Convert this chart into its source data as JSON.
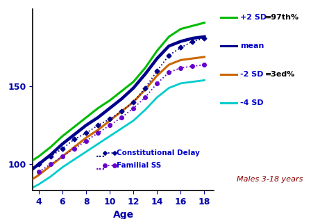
{
  "plot_bg": "#ffffff",
  "fig_bg": "#ffffff",
  "xlim": [
    3.5,
    18.8
  ],
  "ylim": [
    83,
    200
  ],
  "xticks": [
    4,
    6,
    8,
    10,
    12,
    14,
    16,
    18
  ],
  "yticks": [
    100,
    150
  ],
  "xlabel": "Age",
  "annotation": "Males 3-18 years",
  "annotation_color": "#8B0000",
  "sd_plus2": {
    "ages": [
      3,
      4,
      5,
      6,
      7,
      8,
      9,
      10,
      11,
      12,
      13,
      14,
      15,
      16,
      17,
      18
    ],
    "heights": [
      100,
      105,
      111,
      118,
      124,
      130,
      136,
      141,
      147,
      153,
      162,
      173,
      182,
      187,
      189,
      191
    ],
    "color": "#00bb00",
    "lw": 2.2
  },
  "sd_mean": {
    "ages": [
      3,
      4,
      5,
      6,
      7,
      8,
      9,
      10,
      11,
      12,
      13,
      14,
      15,
      16,
      17,
      18
    ],
    "heights": [
      94,
      100,
      106,
      113,
      119,
      125,
      130,
      136,
      142,
      149,
      158,
      168,
      176,
      179,
      181,
      182
    ],
    "color": "#00008B",
    "lw": 3.2
  },
  "sd_minus2": {
    "ages": [
      3,
      4,
      5,
      6,
      7,
      8,
      9,
      10,
      11,
      12,
      13,
      14,
      15,
      16,
      17,
      18
    ],
    "heights": [
      88,
      93,
      99,
      105,
      111,
      117,
      122,
      128,
      134,
      140,
      148,
      157,
      164,
      167,
      168,
      169
    ],
    "color": "#cc6600",
    "lw": 2.2
  },
  "sd_minus4": {
    "ages": [
      3,
      4,
      5,
      6,
      7,
      8,
      9,
      10,
      11,
      12,
      13,
      14,
      15,
      16,
      17,
      18
    ],
    "heights": [
      83,
      87,
      92,
      98,
      103,
      108,
      113,
      118,
      123,
      128,
      135,
      143,
      149,
      152,
      153,
      154
    ],
    "color": "#00cccc",
    "lw": 2.0
  },
  "const_delay": {
    "ages": [
      4,
      5,
      6,
      7,
      8,
      9,
      10,
      11,
      12,
      13,
      14,
      15,
      16,
      17,
      18
    ],
    "heights": [
      100,
      105,
      110,
      116,
      120,
      125,
      129,
      134,
      140,
      149,
      160,
      170,
      175,
      179,
      181
    ],
    "color": "#00008B",
    "lw": 1.3,
    "ms": 3.5
  },
  "familial_ss": {
    "ages": [
      4,
      5,
      6,
      7,
      8,
      9,
      10,
      11,
      12,
      13,
      14,
      15,
      16,
      17,
      18
    ],
    "heights": [
      95,
      100,
      105,
      110,
      115,
      120,
      125,
      130,
      136,
      143,
      152,
      159,
      162,
      163,
      164
    ],
    "color": "#6600cc",
    "lw": 1.3,
    "ms": 4.0
  },
  "right_labels": [
    {
      "text": "+2 SD",
      "color": "#00bb00",
      "y": 191,
      "fontsize": 8,
      "bold": true
    },
    {
      "text": "=97th%",
      "color": "#000000",
      "y": 191,
      "fontsize": 8,
      "bold": true,
      "offset": true
    },
    {
      "text": "mean",
      "color": "#00008B",
      "y": 182,
      "fontsize": 8,
      "bold": true
    },
    {
      "text": "-2 SD",
      "color": "#cc6600",
      "y": 169,
      "fontsize": 8,
      "bold": true
    },
    {
      "text": "=3ed%",
      "color": "#000000",
      "y": 169,
      "fontsize": 8,
      "bold": true,
      "offset": true
    },
    {
      "text": "-4 SD",
      "color": "#00cccc",
      "y": 154,
      "fontsize": 8,
      "bold": true
    }
  ],
  "tick_color": "#0000aa",
  "tick_fontsize": 9,
  "xlabel_fontsize": 10,
  "xlabel_color": "#0000aa"
}
